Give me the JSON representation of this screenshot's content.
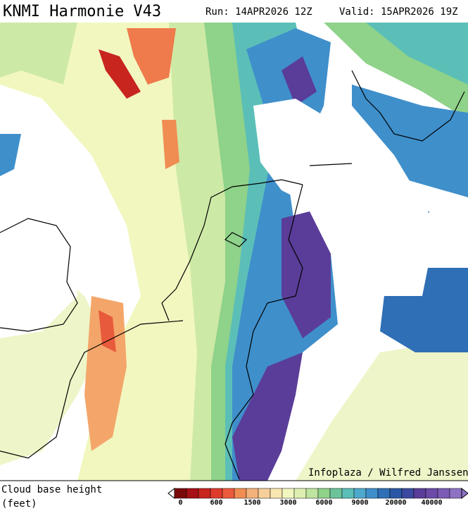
{
  "header": {
    "title": "KNMI Harmonie V43",
    "run": "Run: 14APR2026 12Z",
    "valid": "Valid: 15APR2026 19Z"
  },
  "map": {
    "credit": "Infoplaza / Wilfred Janssen"
  },
  "legend": {
    "title": "Cloud base height",
    "unit": "(feet)",
    "labels": [
      "0",
      "600",
      "1500",
      "3000",
      "6000",
      "9000",
      "20000",
      "40000"
    ]
  }
}
